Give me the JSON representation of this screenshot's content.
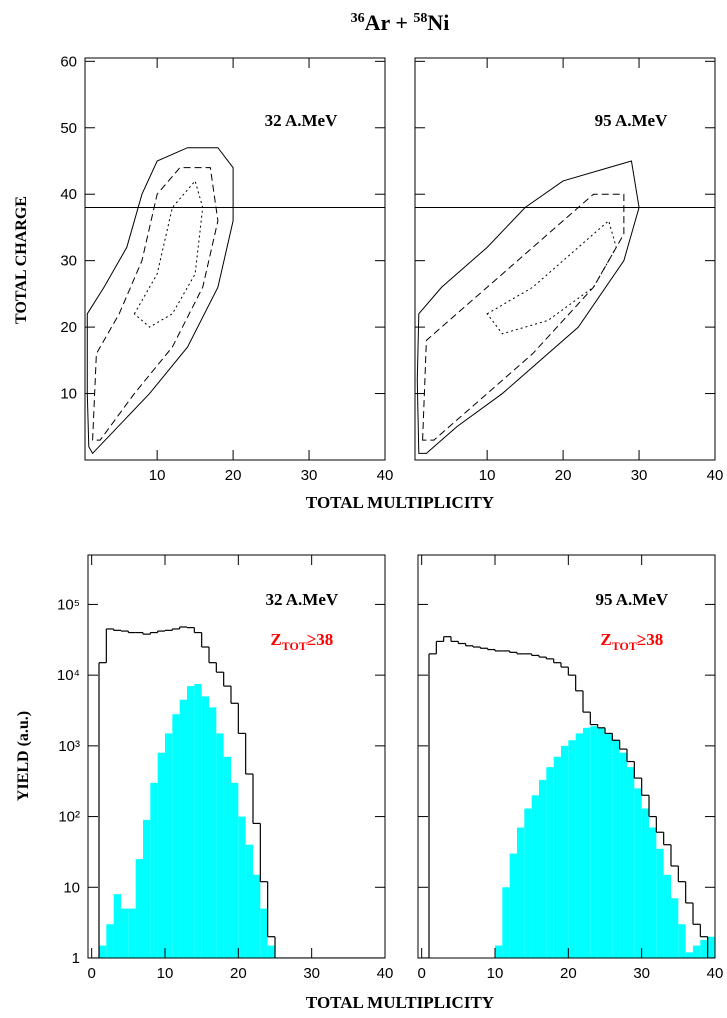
{
  "title": {
    "mass1": "36",
    "text1": "Ar + ",
    "mass2": "58",
    "text2": "Ni"
  },
  "chart_data": [
    {
      "type": "contour",
      "annotation": "32 A.MeV",
      "ylabel": "TOTAL CHARGE",
      "xlabel": "TOTAL MULTIPLICITY",
      "xlim": [
        0.5,
        40
      ],
      "ylim": [
        0,
        60.5
      ],
      "xticks": [
        10,
        20,
        30,
        40
      ],
      "yticks": [
        10,
        20,
        30,
        40,
        50,
        60
      ],
      "ytick_labels": true,
      "threshold": 38,
      "contours": [
        {
          "x": [
            1,
            0.8,
            0.8,
            3,
            6,
            8,
            10,
            14,
            18,
            20,
            20,
            18,
            14,
            9,
            4,
            1.5
          ],
          "y": [
            2,
            10,
            22,
            26,
            32,
            40,
            45,
            47,
            47,
            44,
            36,
            26,
            17,
            10,
            4,
            1
          ]
        },
        {
          "x": [
            1.5,
            2,
            5,
            8,
            10,
            13,
            17,
            18,
            16,
            12,
            7,
            2.5
          ],
          "y": [
            3,
            16,
            22,
            30,
            40,
            44,
            44,
            36,
            26,
            17,
            10,
            3
          ]
        },
        {
          "x": [
            7,
            10,
            12,
            15,
            16,
            15,
            12,
            9
          ],
          "y": [
            22,
            28,
            38,
            42,
            38,
            28,
            22,
            20
          ]
        }
      ]
    },
    {
      "type": "contour",
      "annotation": "95 A.MeV",
      "xlim": [
        0.5,
        40
      ],
      "ylim": [
        0,
        60.5
      ],
      "xticks": [
        10,
        20,
        30,
        40
      ],
      "yticks": [
        10,
        20,
        30,
        40,
        50,
        60
      ],
      "ytick_labels": false,
      "threshold": 38,
      "contours": [
        {
          "x": [
            1,
            0.8,
            1,
            4,
            10,
            15,
            20,
            26,
            29,
            30,
            28,
            22,
            12,
            6,
            2
          ],
          "y": [
            1,
            12,
            22,
            26,
            32,
            38,
            42,
            44,
            45,
            38,
            30,
            20,
            10,
            5,
            1
          ]
        },
        {
          "x": [
            1.5,
            2,
            6,
            12,
            18,
            24,
            28,
            28,
            24,
            16,
            8,
            3
          ],
          "y": [
            3,
            18,
            22,
            28,
            34,
            40,
            40,
            34,
            26,
            16,
            8,
            3
          ]
        },
        {
          "x": [
            10,
            16,
            22,
            26,
            27,
            24,
            18,
            12
          ],
          "y": [
            22,
            26,
            32,
            36,
            32,
            26,
            21,
            19
          ]
        }
      ]
    },
    {
      "type": "histogram",
      "annotation": "32 A.MeV",
      "selection": {
        "symbol": "Z",
        "subscript": "TOT",
        "relation": "≥38"
      },
      "ylabel": "YIELD (a.u.)",
      "xlabel": "TOTAL MULTIPLICITY",
      "log_y": true,
      "xlim": [
        -0.5,
        40
      ],
      "ylim": [
        1,
        500000
      ],
      "xticks": [
        0,
        10,
        20,
        30,
        40
      ],
      "ytick_labels": true,
      "yticks": [
        1,
        10,
        {
          "value": 100,
          "label": "10²"
        },
        {
          "value": 1000,
          "label": "10³"
        },
        {
          "value": 10000,
          "label": "10⁴"
        },
        {
          "value": 100000,
          "label": "10⁵"
        }
      ],
      "bins": [
        0,
        1,
        2,
        3,
        4,
        5,
        6,
        7,
        8,
        9,
        10,
        11,
        12,
        13,
        14,
        15,
        16,
        17,
        18,
        19,
        20,
        21,
        22,
        23,
        24,
        25,
        26,
        27,
        28,
        29,
        30,
        31,
        32,
        33,
        34,
        35,
        36,
        37,
        38,
        39,
        40
      ],
      "series": [
        {
          "color": "#00ffff",
          "style": "filled",
          "values": [
            1,
            1.5,
            3,
            8,
            5,
            5,
            25,
            90,
            300,
            800,
            1500,
            2800,
            4500,
            7000,
            7500,
            5000,
            3500,
            1500,
            700,
            300,
            100,
            40,
            15,
            5,
            1.5,
            0,
            0,
            0,
            0,
            0,
            0,
            0,
            0,
            0,
            0,
            0,
            0,
            0,
            0,
            0
          ]
        },
        {
          "color": "#000000",
          "style": "step",
          "values": [
            1,
            15000,
            45000,
            43000,
            42000,
            40000,
            40000,
            38000,
            40000,
            42000,
            43000,
            45000,
            48000,
            47000,
            40000,
            25000,
            15000,
            11000,
            7000,
            4000,
            1500,
            400,
            80,
            12,
            2,
            1,
            1,
            1,
            1,
            1,
            0,
            0,
            0,
            0,
            0,
            0,
            0,
            0,
            0,
            0
          ]
        }
      ]
    },
    {
      "type": "histogram",
      "annotation": "95 A.MeV",
      "selection": {
        "symbol": "Z",
        "subscript": "TOT",
        "relation": "≥38"
      },
      "log_y": true,
      "xlim": [
        -0.5,
        40
      ],
      "ylim": [
        1,
        500000
      ],
      "xticks": [
        0,
        10,
        20,
        30,
        40
      ],
      "ytick_labels": false,
      "yticks": [
        1,
        10,
        {
          "value": 100,
          "label": "10²"
        },
        {
          "value": 1000,
          "label": "10³"
        },
        {
          "value": 10000,
          "label": "10⁴"
        },
        {
          "value": 100000,
          "label": "10⁵"
        }
      ],
      "bins": [
        0,
        1,
        2,
        3,
        4,
        5,
        6,
        7,
        8,
        9,
        10,
        11,
        12,
        13,
        14,
        15,
        16,
        17,
        18,
        19,
        20,
        21,
        22,
        23,
        24,
        25,
        26,
        27,
        28,
        29,
        30,
        31,
        32,
        33,
        34,
        35,
        36,
        37,
        38,
        39,
        40
      ],
      "series": [
        {
          "color": "#00ffff",
          "style": "filled",
          "values": [
            0,
            0,
            0,
            0,
            0,
            0,
            0,
            0,
            0,
            0,
            1.5,
            10,
            30,
            70,
            130,
            200,
            330,
            500,
            700,
            1000,
            1200,
            1500,
            1800,
            1900,
            1800,
            1500,
            1200,
            800,
            500,
            250,
            130,
            70,
            35,
            15,
            7,
            3,
            1.2,
            1.5,
            1.8,
            2
          ]
        },
        {
          "color": "#000000",
          "style": "step",
          "values": [
            1,
            20000,
            30000,
            35000,
            30000,
            28000,
            26000,
            25000,
            24000,
            23000,
            22000,
            22000,
            21000,
            20000,
            20000,
            19000,
            18000,
            17000,
            15000,
            13000,
            10000,
            6000,
            3000,
            2000,
            1800,
            1500,
            1200,
            900,
            600,
            350,
            200,
            100,
            60,
            40,
            20,
            12,
            6,
            3,
            2,
            1
          ]
        }
      ]
    }
  ]
}
